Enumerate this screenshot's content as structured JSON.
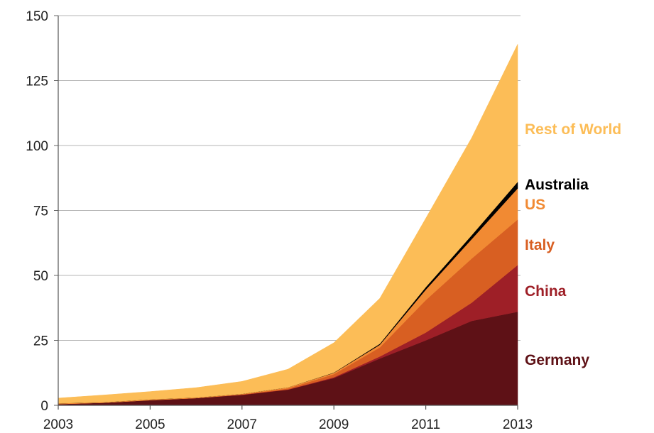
{
  "chart_data": {
    "type": "area",
    "stacked": true,
    "title": "",
    "xlabel": "",
    "ylabel": "",
    "x": [
      2003,
      2004,
      2005,
      2006,
      2007,
      2008,
      2009,
      2010,
      2011,
      2012,
      2013
    ],
    "x_tick_labels": [
      "2003",
      "2005",
      "2007",
      "2009",
      "2011",
      "2013"
    ],
    "x_tick_values": [
      2003,
      2005,
      2007,
      2009,
      2011,
      2013
    ],
    "y_tick_labels": [
      "0",
      "25",
      "50",
      "75",
      "100",
      "125",
      "150"
    ],
    "y_tick_values": [
      0,
      25,
      50,
      75,
      100,
      125,
      150
    ],
    "xlim": [
      2003,
      2013
    ],
    "ylim": [
      0,
      150
    ],
    "grid": "horizontal",
    "legend_placement": "right, inline labels",
    "series": [
      {
        "name": "Germany",
        "color": "#5e1116",
        "values": [
          0.5,
          1.0,
          2.0,
          2.8,
          4.0,
          6.0,
          10.5,
          18.0,
          25.0,
          32.5,
          36.0
        ]
      },
      {
        "name": "China",
        "color": "#9e1f27",
        "values": [
          0.0,
          0.0,
          0.0,
          0.0,
          0.1,
          0.1,
          0.3,
          0.8,
          3.0,
          7.0,
          18.0
        ]
      },
      {
        "name": "Italy",
        "color": "#d85f22",
        "values": [
          0.0,
          0.0,
          0.0,
          0.0,
          0.1,
          0.4,
          1.2,
          3.5,
          12.5,
          17.0,
          17.5
        ]
      },
      {
        "name": "US",
        "color": "#f18a33",
        "values": [
          0.3,
          0.2,
          0.3,
          0.2,
          0.2,
          0.4,
          0.5,
          1.0,
          4.0,
          7.5,
          12.0
        ]
      },
      {
        "name": "Australia",
        "color": "#000000",
        "values": [
          0.0,
          0.0,
          0.0,
          0.0,
          0.0,
          0.0,
          0.1,
          0.4,
          1.0,
          1.5,
          2.5
        ]
      },
      {
        "name": "Rest of World",
        "color": "#fcbd57",
        "values": [
          2.0,
          2.8,
          3.0,
          3.8,
          4.8,
          7.0,
          11.5,
          17.5,
          26.5,
          37.5,
          53.0
        ]
      }
    ]
  }
}
